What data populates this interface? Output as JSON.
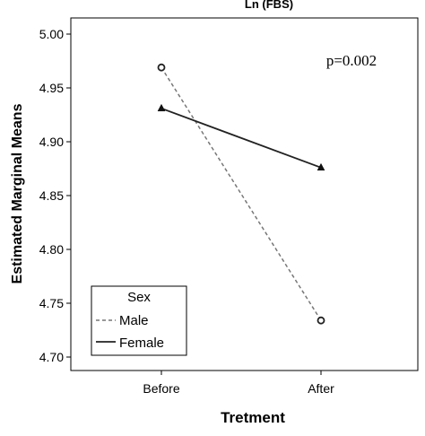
{
  "chart_data": {
    "type": "line",
    "title": "Ln (FBS)",
    "xlabel": "Tretment",
    "ylabel": "Estimated Marginal Means",
    "categories": [
      "Before",
      "After"
    ],
    "ylim": [
      4.7,
      5.0
    ],
    "yticks": [
      "4.70",
      "4.75",
      "4.80",
      "4.85",
      "4.90",
      "4.95",
      "5.00"
    ],
    "grid": false,
    "annotation": "p=0.002",
    "legend": {
      "title": "Sex",
      "placement": "bottom-left"
    },
    "series": [
      {
        "name": "Male",
        "values": [
          4.969,
          4.734
        ],
        "style": "dashed",
        "marker": "circle",
        "color": "#777777"
      },
      {
        "name": "Female",
        "values": [
          4.931,
          4.876
        ],
        "style": "solid",
        "marker": "triangle",
        "color": "#222222"
      }
    ]
  }
}
